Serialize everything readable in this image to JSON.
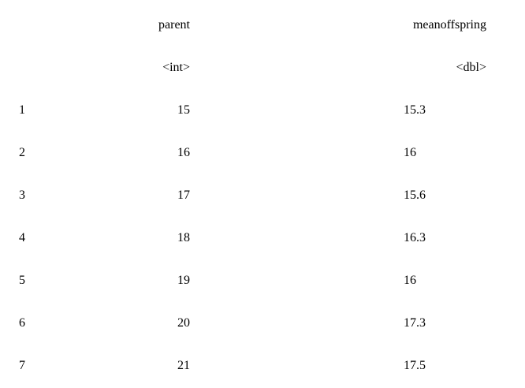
{
  "table": {
    "headers": [
      "parent",
      "meanoffspring"
    ],
    "types": [
      "<int>",
      "<dbl>"
    ],
    "rows": [
      {
        "row": "1",
        "parent": "15",
        "meanoffspring": "15.3"
      },
      {
        "row": "2",
        "parent": "16",
        "meanoffspring": "16"
      },
      {
        "row": "3",
        "parent": "17",
        "meanoffspring": "15.6"
      },
      {
        "row": "4",
        "parent": "18",
        "meanoffspring": "16.3"
      },
      {
        "row": "5",
        "parent": "19",
        "meanoffspring": "16"
      },
      {
        "row": "6",
        "parent": "20",
        "meanoffspring": "17.3"
      },
      {
        "row": "7",
        "parent": "21",
        "meanoffspring": "17.5"
      }
    ]
  }
}
